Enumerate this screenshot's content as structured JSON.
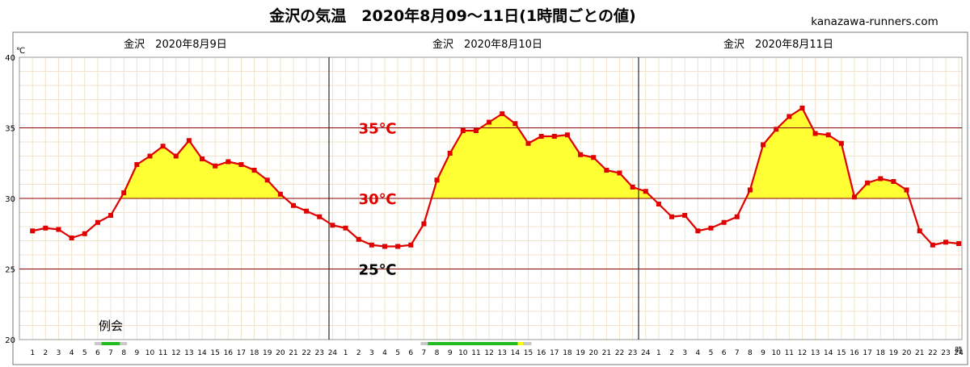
{
  "header": {
    "title": "金沢の気温　2020年8月09～11日(1時間ごとの値)",
    "site": "kanazawa-runners.com"
  },
  "chart_data": {
    "type": "line",
    "title": "金沢の気温　2020年8月09～11日(1時間ごとの値)",
    "y_unit": "℃",
    "x_unit": "時",
    "ylim": [
      20,
      40
    ],
    "yticks": [
      20,
      25,
      30,
      35,
      40
    ],
    "fill_above": 30,
    "grid": true,
    "days": [
      {
        "label": "金沢　2020年8月9日",
        "hours": [
          1,
          2,
          3,
          4,
          5,
          6,
          7,
          8,
          9,
          10,
          11,
          12,
          13,
          14,
          15,
          16,
          17,
          18,
          19,
          20,
          21,
          22,
          23,
          24
        ],
        "values": [
          27.7,
          27.9,
          27.8,
          27.2,
          27.5,
          28.3,
          28.8,
          30.4,
          32.4,
          33.0,
          33.7,
          33.0,
          34.1,
          32.8,
          32.3,
          32.6,
          32.4,
          32.0,
          31.3,
          30.3,
          29.5,
          29.1,
          28.7,
          28.1
        ]
      },
      {
        "label": "金沢　2020年8月10日",
        "hours": [
          1,
          2,
          3,
          4,
          5,
          6,
          7,
          8,
          9,
          10,
          11,
          12,
          13,
          14,
          15,
          16,
          17,
          18,
          19,
          20,
          21,
          22,
          23,
          24
        ],
        "values": [
          27.9,
          27.1,
          26.7,
          26.6,
          26.6,
          26.7,
          28.2,
          31.3,
          33.2,
          34.8,
          34.8,
          35.4,
          36.0,
          35.3,
          33.9,
          34.4,
          34.4,
          34.5,
          33.1,
          32.9,
          32.0,
          31.8,
          30.8,
          30.5
        ]
      },
      {
        "label": "金沢　2020年8月11日",
        "hours": [
          1,
          2,
          3,
          4,
          5,
          6,
          7,
          8,
          9,
          10,
          11,
          12,
          13,
          14,
          15,
          16,
          17,
          18,
          19,
          20,
          21,
          22,
          23,
          24
        ],
        "values": [
          29.6,
          28.7,
          28.8,
          27.7,
          27.9,
          28.3,
          28.7,
          30.6,
          33.8,
          34.9,
          35.8,
          36.4,
          34.6,
          34.5,
          33.9,
          30.1,
          31.1,
          31.4,
          31.2,
          30.6,
          27.7,
          26.7,
          26.9,
          26.8
        ]
      }
    ],
    "reference_lines": [
      {
        "value": 35,
        "label": "35℃",
        "color": "#e00000"
      },
      {
        "value": 30,
        "label": "30℃",
        "color": "#e00000"
      },
      {
        "value": 25,
        "label": "25℃",
        "color": "#000000"
      }
    ],
    "annotations": [
      {
        "label": "例会",
        "day": 0,
        "from_hour": 6,
        "to_hour": 8
      }
    ],
    "daylight_bars": [
      {
        "day": 0,
        "from_hour": 6,
        "to_hour": 8,
        "green_from": 6.3,
        "green_to": 7.7
      },
      {
        "day": 1,
        "from_hour": 7,
        "to_hour": 15,
        "green_from": 7.3,
        "green_to": 14.2,
        "yellow_to": 14.6
      }
    ],
    "colors": {
      "line": "#e00000",
      "marker": "#e00000",
      "fill": "#ffff33",
      "gridline": "#f0e4cc",
      "refline": "#8b0000",
      "daydivider": "#000000",
      "bar_green": "#22bb22",
      "bar_gray": "#c8c8c8",
      "bar_yellow": "#ffff00"
    }
  }
}
